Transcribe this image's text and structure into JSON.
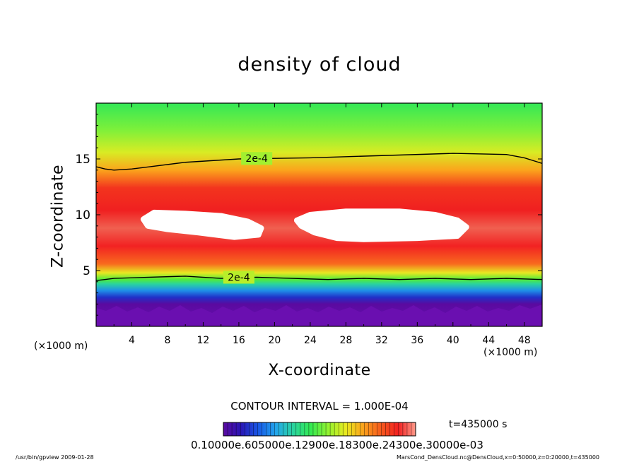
{
  "title": "density of cloud",
  "x_axis": {
    "label": "X-coordinate",
    "unit_left": "(×1000 m)",
    "unit_right": "(×1000 m)"
  },
  "y_axis": {
    "label": "Z-coordinate"
  },
  "footer": {
    "left": "/usr/bin/gpview   2009-01-28",
    "right": "MarsCond_DensCloud.nc@DensCloud,x=0:50000,z=0:20000,t=435000"
  },
  "contour_interval": "CONTOUR INTERVAL = 1.000E-04",
  "time_label": "t=435000 s",
  "colorbar": {
    "labels_text": "0.10000e.605000e.12900e.18300e.24300e.30000e-03"
  },
  "chart_data": {
    "type": "heatmap",
    "title": "density of cloud",
    "xlabel": "X-coordinate",
    "ylabel": "Z-coordinate",
    "xlim": [
      0,
      50
    ],
    "ylim": [
      0,
      20
    ],
    "xticks": [
      4,
      8,
      12,
      16,
      20,
      24,
      28,
      32,
      36,
      40,
      44,
      48
    ],
    "yticks": [
      5,
      10,
      15
    ],
    "grid": false,
    "colormap": [
      "#5a0aa0",
      "#2a16b4",
      "#1858e6",
      "#23a6ec",
      "#2ad49e",
      "#33ea52",
      "#93f230",
      "#e9ea20",
      "#fba21c",
      "#f65c1e",
      "#f22020",
      "#ff9c8c"
    ],
    "contours": [
      {
        "label": "2e-4",
        "x": [
          0,
          1,
          2,
          4,
          6,
          10,
          16,
          24,
          32,
          40,
          46,
          48,
          50
        ],
        "y": [
          14.3,
          14.1,
          14.0,
          14.1,
          14.3,
          14.7,
          15.0,
          15.1,
          15.3,
          15.5,
          15.4,
          15.1,
          14.6
        ]
      },
      {
        "label": "2e-4",
        "x": [
          0,
          2,
          6,
          10,
          14,
          18,
          22,
          26,
          30,
          34,
          38,
          42,
          46,
          50
        ],
        "y": [
          4.1,
          4.3,
          4.4,
          4.5,
          4.3,
          4.4,
          4.3,
          4.2,
          4.3,
          4.2,
          4.3,
          4.2,
          4.3,
          4.2
        ]
      }
    ],
    "empty_regions": [
      {
        "x": [
          5.3,
          6.5,
          10,
          14,
          17,
          18.5,
          18.2,
          15.5,
          11.5,
          8,
          5.8
        ],
        "y": [
          9.6,
          10.2,
          10.1,
          9.9,
          9.4,
          8.8,
          8.2,
          8.0,
          8.4,
          8.7,
          9.0
        ]
      },
      {
        "x": [
          22.5,
          24,
          28,
          34,
          38,
          40.5,
          41.5,
          40.5,
          36,
          30,
          27,
          24.5,
          23
        ],
        "y": [
          9.5,
          10.0,
          10.3,
          10.3,
          10.0,
          9.5,
          8.9,
          8.1,
          7.9,
          7.8,
          7.9,
          8.4,
          9.0
        ]
      }
    ]
  }
}
